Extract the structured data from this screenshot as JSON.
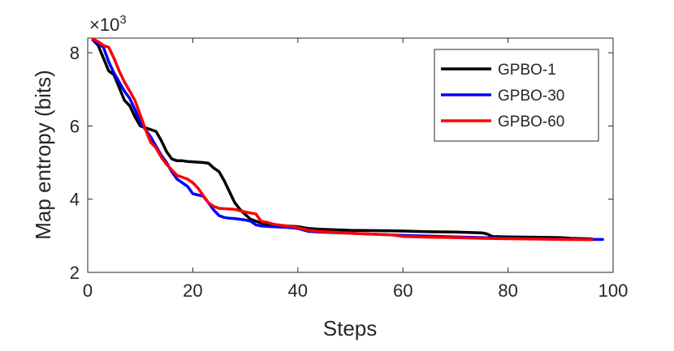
{
  "chart_data": {
    "type": "line",
    "title": "",
    "xlabel": "Steps",
    "ylabel": "Map entropy (bits)",
    "y_multiplier_label": "×10",
    "y_multiplier_exponent": "3",
    "xlim": [
      0,
      100
    ],
    "ylim": [
      2,
      8.4
    ],
    "x_ticks": [
      0,
      20,
      40,
      60,
      80,
      100
    ],
    "y_ticks": [
      2,
      4,
      6,
      8
    ],
    "grid": false,
    "legend_position": "top-right",
    "series": [
      {
        "name": "GPBO-1",
        "color": "#000000",
        "points": [
          [
            1,
            8.35
          ],
          [
            2,
            8.2
          ],
          [
            3,
            7.85
          ],
          [
            4,
            7.5
          ],
          [
            5,
            7.4
          ],
          [
            6,
            7.05
          ],
          [
            7,
            6.7
          ],
          [
            8,
            6.55
          ],
          [
            9,
            6.25
          ],
          [
            10,
            6.0
          ],
          [
            11,
            5.95
          ],
          [
            12,
            5.9
          ],
          [
            13,
            5.85
          ],
          [
            14,
            5.6
          ],
          [
            15,
            5.3
          ],
          [
            16,
            5.1
          ],
          [
            17,
            5.05
          ],
          [
            18,
            5.05
          ],
          [
            19,
            5.03
          ],
          [
            20,
            5.02
          ],
          [
            22,
            5.0
          ],
          [
            23,
            4.98
          ],
          [
            24,
            4.85
          ],
          [
            25,
            4.75
          ],
          [
            26,
            4.5
          ],
          [
            27,
            4.2
          ],
          [
            28,
            3.9
          ],
          [
            29,
            3.72
          ],
          [
            30,
            3.58
          ],
          [
            31,
            3.45
          ],
          [
            32,
            3.4
          ],
          [
            33,
            3.35
          ],
          [
            34,
            3.3
          ],
          [
            35,
            3.28
          ],
          [
            38,
            3.27
          ],
          [
            40,
            3.25
          ],
          [
            42,
            3.2
          ],
          [
            44,
            3.18
          ],
          [
            50,
            3.15
          ],
          [
            55,
            3.14
          ],
          [
            60,
            3.13
          ],
          [
            65,
            3.11
          ],
          [
            70,
            3.1
          ],
          [
            75,
            3.08
          ],
          [
            76,
            3.05
          ],
          [
            77,
            2.98
          ],
          [
            80,
            2.97
          ],
          [
            85,
            2.96
          ],
          [
            90,
            2.95
          ],
          [
            92,
            2.93
          ],
          [
            95,
            2.92
          ],
          [
            96,
            2.91
          ]
        ]
      },
      {
        "name": "GPBO-30",
        "color": "#0000ff",
        "points": [
          [
            1,
            8.35
          ],
          [
            2,
            8.25
          ],
          [
            3,
            8.15
          ],
          [
            4,
            7.75
          ],
          [
            5,
            7.45
          ],
          [
            6,
            7.2
          ],
          [
            7,
            6.95
          ],
          [
            8,
            6.75
          ],
          [
            9,
            6.45
          ],
          [
            10,
            6.1
          ],
          [
            11,
            5.9
          ],
          [
            12,
            5.7
          ],
          [
            13,
            5.45
          ],
          [
            14,
            5.2
          ],
          [
            15,
            5.0
          ],
          [
            16,
            4.75
          ],
          [
            17,
            4.55
          ],
          [
            18,
            4.45
          ],
          [
            19,
            4.35
          ],
          [
            20,
            4.15
          ],
          [
            22,
            4.08
          ],
          [
            23,
            3.9
          ],
          [
            24,
            3.7
          ],
          [
            25,
            3.55
          ],
          [
            26,
            3.5
          ],
          [
            27,
            3.48
          ],
          [
            28,
            3.47
          ],
          [
            29,
            3.45
          ],
          [
            30,
            3.43
          ],
          [
            31,
            3.4
          ],
          [
            32,
            3.3
          ],
          [
            33,
            3.27
          ],
          [
            35,
            3.25
          ],
          [
            38,
            3.23
          ],
          [
            40,
            3.2
          ],
          [
            42,
            3.12
          ],
          [
            44,
            3.1
          ],
          [
            50,
            3.07
          ],
          [
            55,
            3.04
          ],
          [
            60,
            3.01
          ],
          [
            65,
            2.99
          ],
          [
            70,
            2.97
          ],
          [
            75,
            2.95
          ],
          [
            80,
            2.93
          ],
          [
            85,
            2.92
          ],
          [
            90,
            2.91
          ],
          [
            95,
            2.9
          ],
          [
            98,
            2.9
          ]
        ]
      },
      {
        "name": "GPBO-60",
        "color": "#ff0000",
        "points": [
          [
            1,
            8.38
          ],
          [
            2,
            8.3
          ],
          [
            3,
            8.2
          ],
          [
            4,
            8.15
          ],
          [
            5,
            7.85
          ],
          [
            6,
            7.5
          ],
          [
            7,
            7.2
          ],
          [
            8,
            6.95
          ],
          [
            9,
            6.7
          ],
          [
            10,
            6.3
          ],
          [
            11,
            5.9
          ],
          [
            12,
            5.55
          ],
          [
            13,
            5.4
          ],
          [
            14,
            5.15
          ],
          [
            15,
            4.95
          ],
          [
            16,
            4.8
          ],
          [
            17,
            4.65
          ],
          [
            18,
            4.6
          ],
          [
            19,
            4.55
          ],
          [
            20,
            4.45
          ],
          [
            21,
            4.3
          ],
          [
            22,
            4.1
          ],
          [
            23,
            3.9
          ],
          [
            24,
            3.8
          ],
          [
            25,
            3.75
          ],
          [
            28,
            3.72
          ],
          [
            30,
            3.65
          ],
          [
            31,
            3.62
          ],
          [
            32,
            3.6
          ],
          [
            33,
            3.4
          ],
          [
            34,
            3.37
          ],
          [
            35,
            3.33
          ],
          [
            36,
            3.3
          ],
          [
            38,
            3.27
          ],
          [
            40,
            3.22
          ],
          [
            42,
            3.15
          ],
          [
            44,
            3.12
          ],
          [
            50,
            3.07
          ],
          [
            55,
            3.04
          ],
          [
            58,
            3.02
          ],
          [
            60,
            2.98
          ],
          [
            65,
            2.96
          ],
          [
            70,
            2.95
          ],
          [
            75,
            2.93
          ],
          [
            80,
            2.92
          ],
          [
            85,
            2.91
          ],
          [
            90,
            2.9
          ],
          [
            96,
            2.89
          ]
        ]
      }
    ]
  }
}
